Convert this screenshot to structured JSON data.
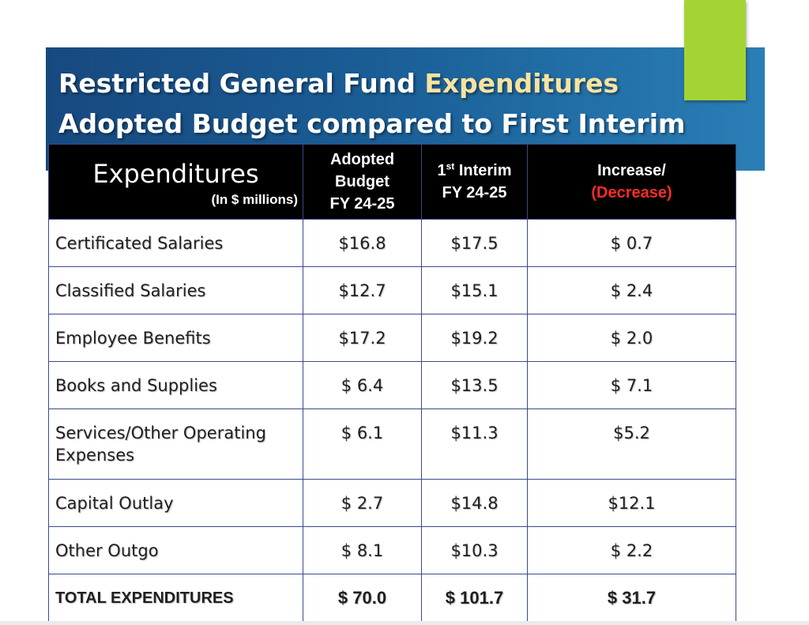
{
  "title": {
    "line1_prefix": "Restricted General Fund ",
    "line1_highlight": "Expenditures",
    "line2": "Adopted Budget compared to First Interim"
  },
  "table": {
    "headers": {
      "expenditures": "Expenditures",
      "expenditures_sub": "(In $ millions)",
      "adopted_line1": "Adopted",
      "adopted_line2": "Budget",
      "adopted_line3": "FY 24-25",
      "interim_num": "1",
      "interim_sup": "st",
      "interim_word": " Interim",
      "interim_line2": "FY 24-25",
      "change_line1": "Increase/",
      "change_line2": "(Decrease)"
    },
    "rows": [
      {
        "label": "Certificated Salaries",
        "adopted": "$16.8",
        "interim": "$17.5",
        "change": "$ 0.7"
      },
      {
        "label": "Classified Salaries",
        "adopted": "$12.7",
        "interim": "$15.1",
        "change": "$ 2.4"
      },
      {
        "label": "Employee Benefits",
        "adopted": "$17.2",
        "interim": "$19.2",
        "change": "$ 2.0"
      },
      {
        "label": "Books and Supplies",
        "adopted": "$ 6.4",
        "interim": "$13.5",
        "change": "$ 7.1"
      },
      {
        "label": "Services/Other Operating Expenses",
        "adopted": "$ 6.1",
        "interim": "$11.3",
        "change": "$5.2"
      },
      {
        "label": "Capital Outlay",
        "adopted": "$ 2.7",
        "interim": "$14.8",
        "change": "$12.1"
      },
      {
        "label": "Other Outgo",
        "adopted": "$ 8.1",
        "interim": "$10.3",
        "change": "$ 2.2"
      }
    ],
    "total": {
      "label": "TOTAL EXPENDITURES",
      "adopted": "$ 70.0",
      "interim": "$ 101.7",
      "change": "$ 31.7"
    }
  },
  "colors": {
    "banner": "#1a5d95",
    "title_highlight": "#f7e3a0",
    "accent": "#a4d433",
    "decrease": "#ff2a2a",
    "header_bg": "#000000"
  }
}
